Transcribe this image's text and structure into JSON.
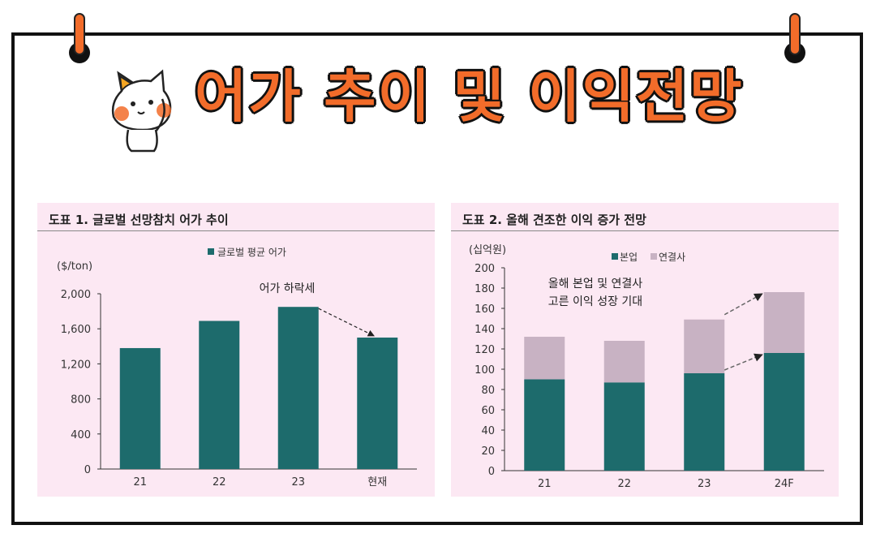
{
  "page_title": "어가 추이 및 이익전망",
  "colors": {
    "accent": "#f26c2a",
    "bar_main": "#1d6b6c",
    "bar_sub": "#c8b2c3",
    "panel_bg": "#fce8f3"
  },
  "chart_data": [
    {
      "type": "bar",
      "title": "도표 1. 글로벌 선망참치 어가 추이",
      "ylabel": "($/ton)",
      "legend": [
        "글로벌 평균 어가"
      ],
      "categories": [
        "21",
        "22",
        "23",
        "현재"
      ],
      "values": [
        1380,
        1690,
        1850,
        1500
      ],
      "ylim": [
        0,
        2000
      ],
      "yticks": [
        "0",
        "400",
        "800",
        "1,200",
        "1,600",
        "2,000"
      ],
      "annotation": "어가 하락세"
    },
    {
      "type": "bar",
      "stacked": true,
      "title": "도표 2. 올해 견조한 이익 증가 전망",
      "ylabel": "(십억원)",
      "categories": [
        "21",
        "22",
        "23",
        "24F"
      ],
      "series": [
        {
          "name": "본업",
          "values": [
            90,
            87,
            96,
            116
          ]
        },
        {
          "name": "연결사",
          "values": [
            42,
            41,
            53,
            60
          ]
        }
      ],
      "ylim": [
        0,
        200
      ],
      "yticks": [
        "0",
        "20",
        "40",
        "60",
        "80",
        "100",
        "120",
        "140",
        "160",
        "180",
        "200"
      ],
      "annotation": [
        "올해 본업 및 연결사",
        "고른 이익 성장 기대"
      ]
    }
  ]
}
